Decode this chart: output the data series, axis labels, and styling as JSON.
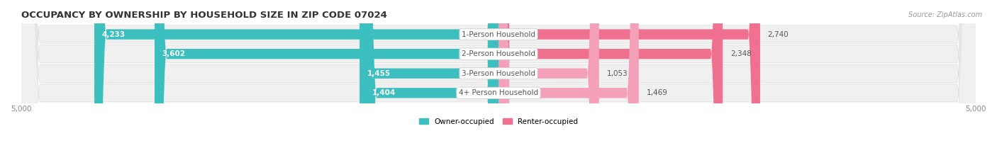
{
  "title": "OCCUPANCY BY OWNERSHIP BY HOUSEHOLD SIZE IN ZIP CODE 07024",
  "source": "Source: ZipAtlas.com",
  "categories": [
    "1-Person Household",
    "2-Person Household",
    "3-Person Household",
    "4+ Person Household"
  ],
  "owner_values": [
    4233,
    3602,
    1455,
    1404
  ],
  "renter_values": [
    2740,
    2348,
    1053,
    1469
  ],
  "x_max": 5000,
  "owner_color": "#3BBFBF",
  "renter_color": "#F07090",
  "renter_color_light": "#F4A0B8",
  "row_bg_color": "#F0F0F0",
  "row_border_color": "#DDDDDD",
  "legend_owner": "Owner-occupied",
  "legend_renter": "Renter-occupied",
  "title_fontsize": 9.5,
  "label_fontsize": 7.5,
  "value_fontsize": 7.5,
  "tick_fontsize": 7.5,
  "source_fontsize": 7
}
